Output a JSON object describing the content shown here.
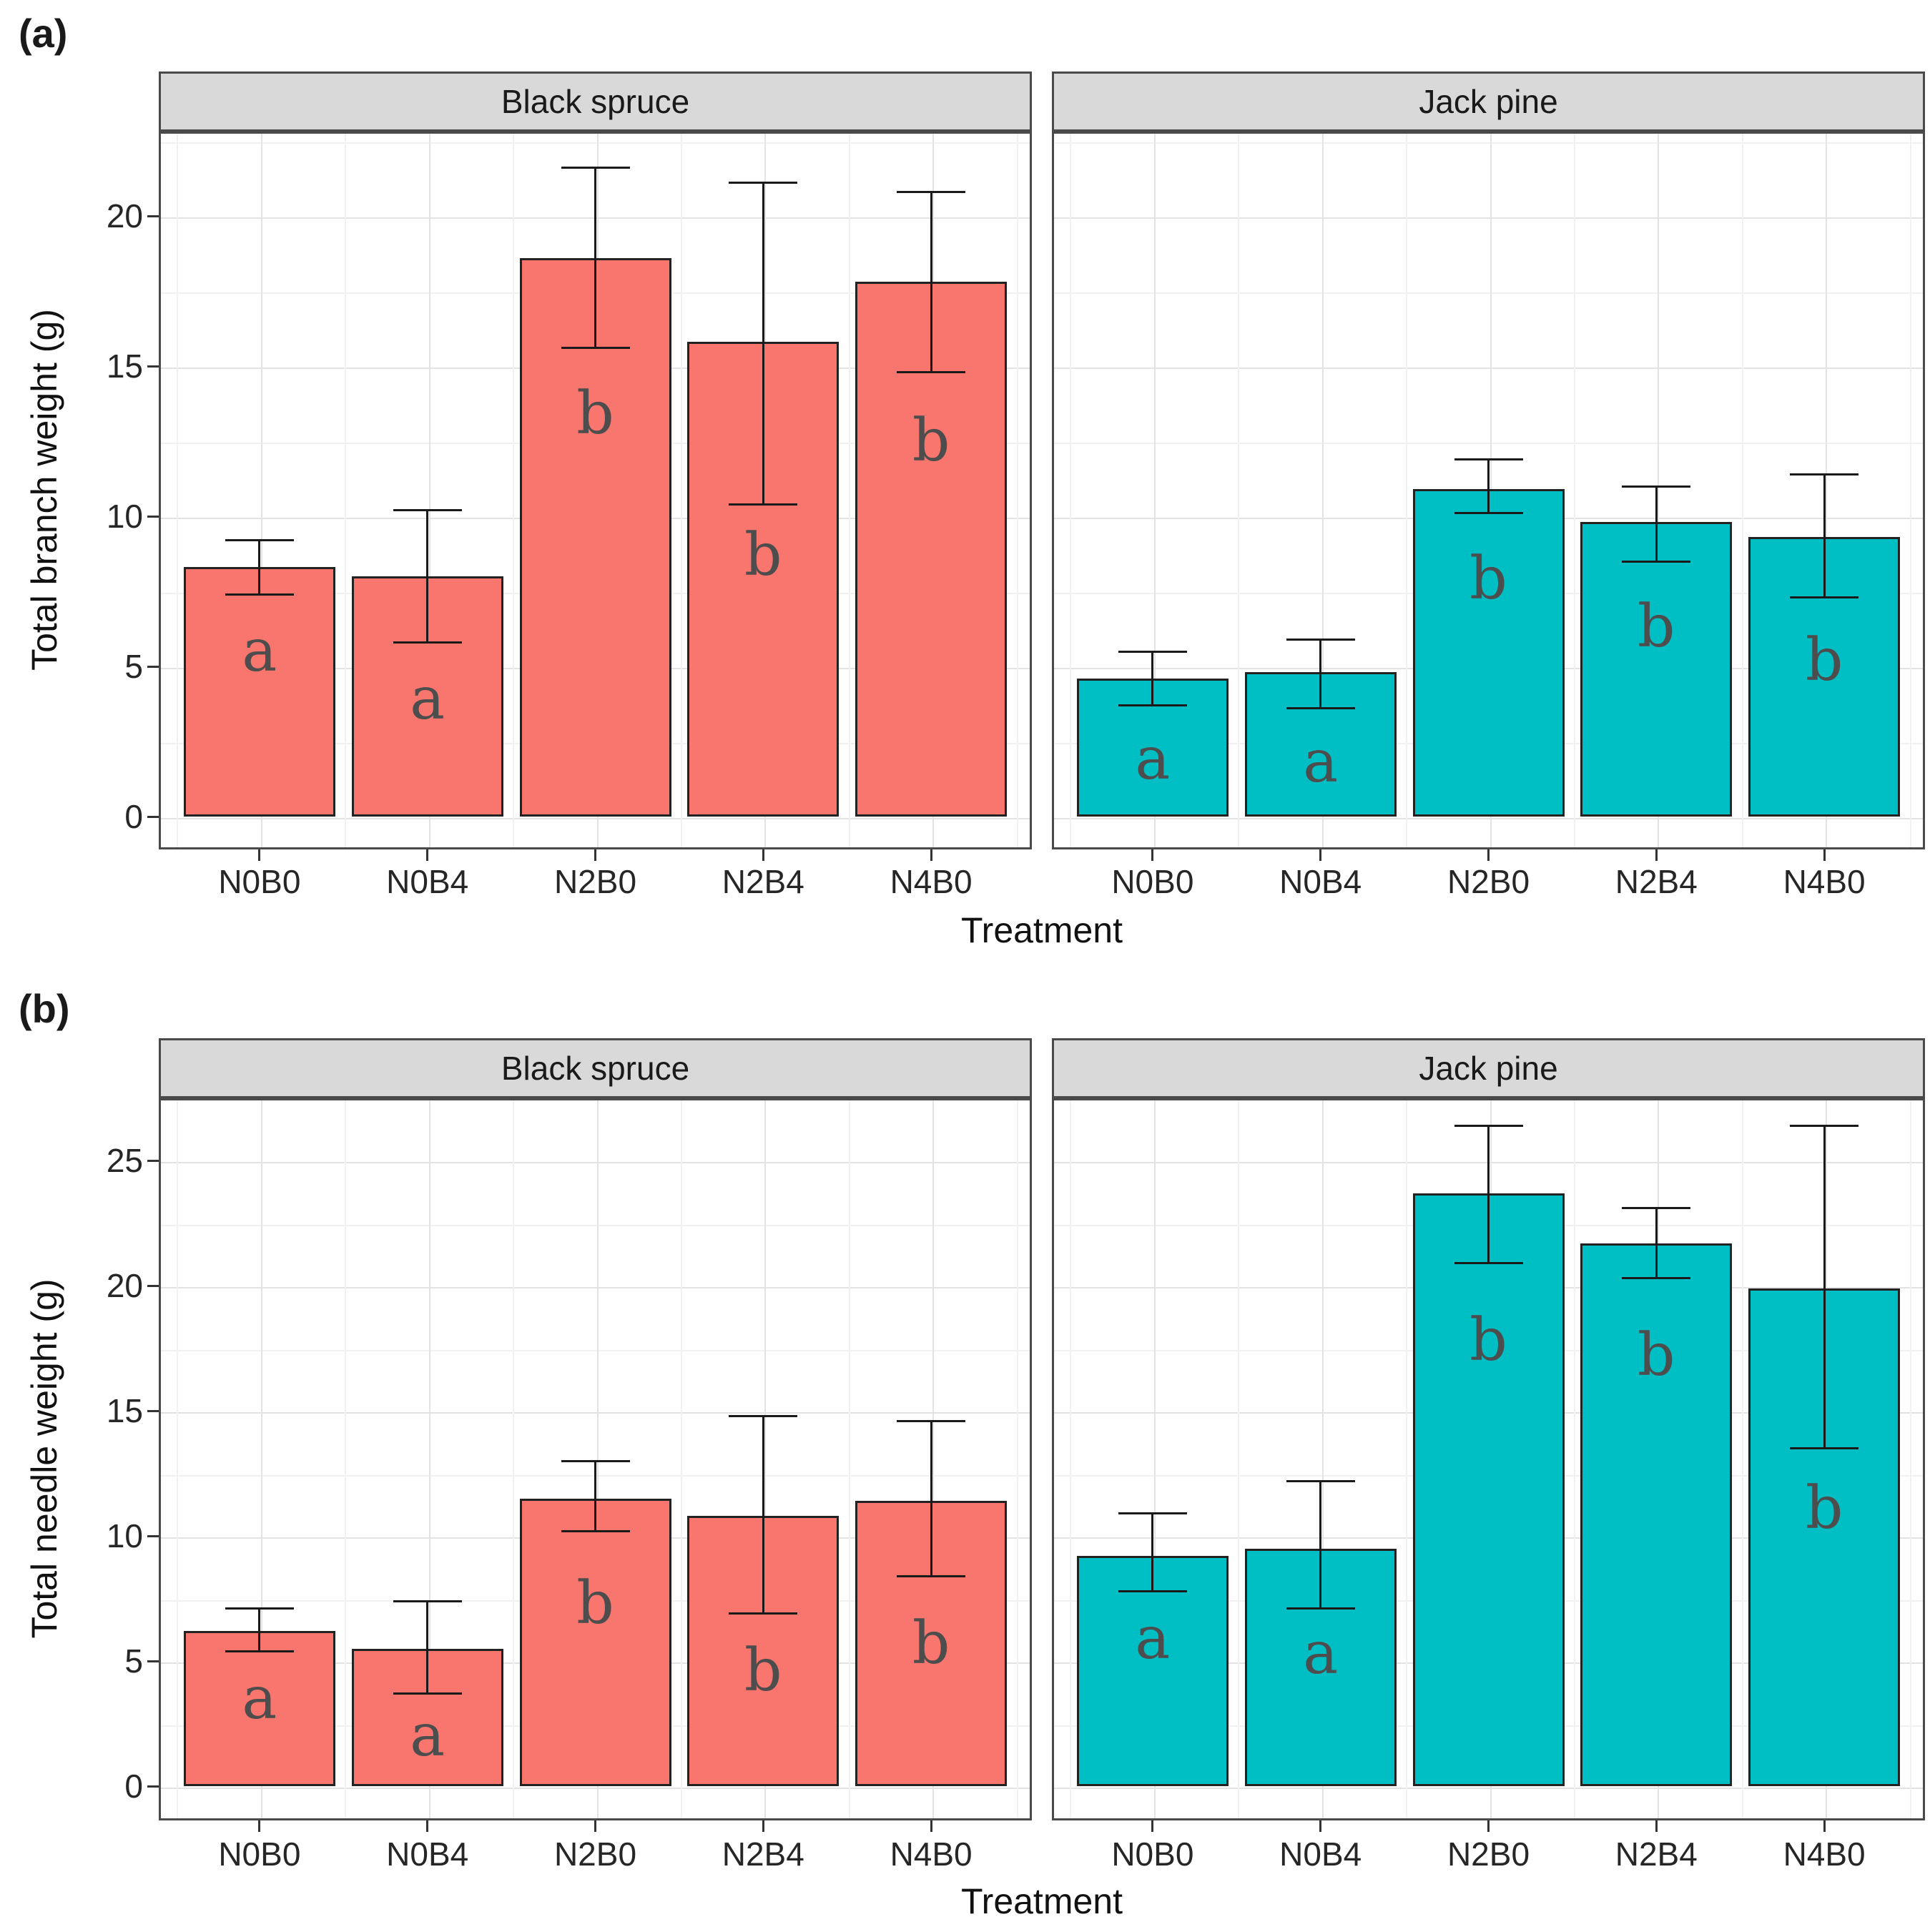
{
  "panel_tags": {
    "a": "(a)",
    "b": "(b)"
  },
  "facets": [
    "Black spruce",
    "Jack pine"
  ],
  "treatments": [
    "N0B0",
    "N0B4",
    "N2B0",
    "N2B4",
    "N4B0"
  ],
  "x_axis_title": "Treatment",
  "colors": {
    "black_spruce_fill": "#F8766D",
    "jack_pine_fill": "#00BFC4",
    "bar_border": "#222222",
    "error_bar": "#1a1a1a",
    "strip_background": "#d9d9d9",
    "panel_border": "#4a4a4a",
    "grid_major": "#e3e3e3",
    "grid_minor": "#f1f1f1",
    "letter_color": "#4d4d4d"
  },
  "chart_data": [
    {
      "id": "a",
      "type": "bar",
      "title": "",
      "xlabel": "Treatment",
      "ylabel": "Total branch weight (g)",
      "yticks": [
        0,
        5,
        10,
        15,
        20
      ],
      "ylim": [
        0,
        22.8
      ],
      "grid": true,
      "legend": "none",
      "categories": [
        "N0B0",
        "N0B4",
        "N2B0",
        "N2B4",
        "N4B0"
      ],
      "facets": [
        {
          "name": "Black spruce",
          "fill": "#F8766D",
          "bars": [
            {
              "treatment": "N0B0",
              "value": 8.3,
              "ci_low": 7.4,
              "ci_high": 9.2,
              "letter": "a",
              "letter_y": 5.5
            },
            {
              "treatment": "N0B4",
              "value": 8.0,
              "ci_low": 5.8,
              "ci_high": 10.2,
              "letter": "a",
              "letter_y": 3.9
            },
            {
              "treatment": "N2B0",
              "value": 18.6,
              "ci_low": 15.6,
              "ci_high": 21.6,
              "letter": "b",
              "letter_y": 13.4
            },
            {
              "treatment": "N2B4",
              "value": 15.8,
              "ci_low": 10.4,
              "ci_high": 21.1,
              "letter": "b",
              "letter_y": 8.7
            },
            {
              "treatment": "N4B0",
              "value": 17.8,
              "ci_low": 14.8,
              "ci_high": 20.8,
              "letter": "b",
              "letter_y": 12.5
            }
          ]
        },
        {
          "name": "Jack pine",
          "fill": "#00BFC4",
          "bars": [
            {
              "treatment": "N0B0",
              "value": 4.6,
              "ci_low": 3.7,
              "ci_high": 5.5,
              "letter": "a",
              "letter_y": 1.9
            },
            {
              "treatment": "N0B4",
              "value": 4.8,
              "ci_low": 3.6,
              "ci_high": 5.9,
              "letter": "a",
              "letter_y": 1.8
            },
            {
              "treatment": "N2B0",
              "value": 10.9,
              "ci_low": 10.1,
              "ci_high": 11.9,
              "letter": "b",
              "letter_y": 7.9
            },
            {
              "treatment": "N2B4",
              "value": 9.8,
              "ci_low": 8.5,
              "ci_high": 11.0,
              "letter": "b",
              "letter_y": 6.3
            },
            {
              "treatment": "N4B0",
              "value": 9.3,
              "ci_low": 7.3,
              "ci_high": 11.4,
              "letter": "b",
              "letter_y": 5.2
            }
          ]
        }
      ]
    },
    {
      "id": "b",
      "type": "bar",
      "title": "",
      "xlabel": "Treatment",
      "ylabel": "Total needle weight (g)",
      "yticks": [
        0,
        5,
        10,
        15,
        20,
        25
      ],
      "ylim": [
        0,
        27.4
      ],
      "grid": true,
      "legend": "none",
      "categories": [
        "N0B0",
        "N0B4",
        "N2B0",
        "N2B4",
        "N4B0"
      ],
      "facets": [
        {
          "name": "Black spruce",
          "fill": "#F8766D",
          "bars": [
            {
              "treatment": "N0B0",
              "value": 6.2,
              "ci_low": 5.4,
              "ci_high": 7.1,
              "letter": "a",
              "letter_y": 3.5
            },
            {
              "treatment": "N0B4",
              "value": 5.5,
              "ci_low": 3.7,
              "ci_high": 7.4,
              "letter": "a",
              "letter_y": 2.0
            },
            {
              "treatment": "N2B0",
              "value": 11.5,
              "ci_low": 10.2,
              "ci_high": 13.0,
              "letter": "b",
              "letter_y": 7.3
            },
            {
              "treatment": "N2B4",
              "value": 10.8,
              "ci_low": 6.9,
              "ci_high": 14.8,
              "letter": "b",
              "letter_y": 4.6
            },
            {
              "treatment": "N4B0",
              "value": 11.4,
              "ci_low": 8.4,
              "ci_high": 14.6,
              "letter": "b",
              "letter_y": 5.7
            }
          ]
        },
        {
          "name": "Jack pine",
          "fill": "#00BFC4",
          "bars": [
            {
              "treatment": "N0B0",
              "value": 9.2,
              "ci_low": 7.8,
              "ci_high": 10.9,
              "letter": "a",
              "letter_y": 5.9
            },
            {
              "treatment": "N0B4",
              "value": 9.5,
              "ci_low": 7.1,
              "ci_high": 12.2,
              "letter": "a",
              "letter_y": 5.3
            },
            {
              "treatment": "N2B0",
              "value": 23.7,
              "ci_low": 20.9,
              "ci_high": 26.4,
              "letter": "b",
              "letter_y": 17.8
            },
            {
              "treatment": "N2B4",
              "value": 21.7,
              "ci_low": 20.3,
              "ci_high": 23.1,
              "letter": "b",
              "letter_y": 17.2
            },
            {
              "treatment": "N4B0",
              "value": 19.9,
              "ci_low": 13.5,
              "ci_high": 26.4,
              "letter": "b",
              "letter_y": 11.1
            }
          ]
        }
      ]
    }
  ]
}
